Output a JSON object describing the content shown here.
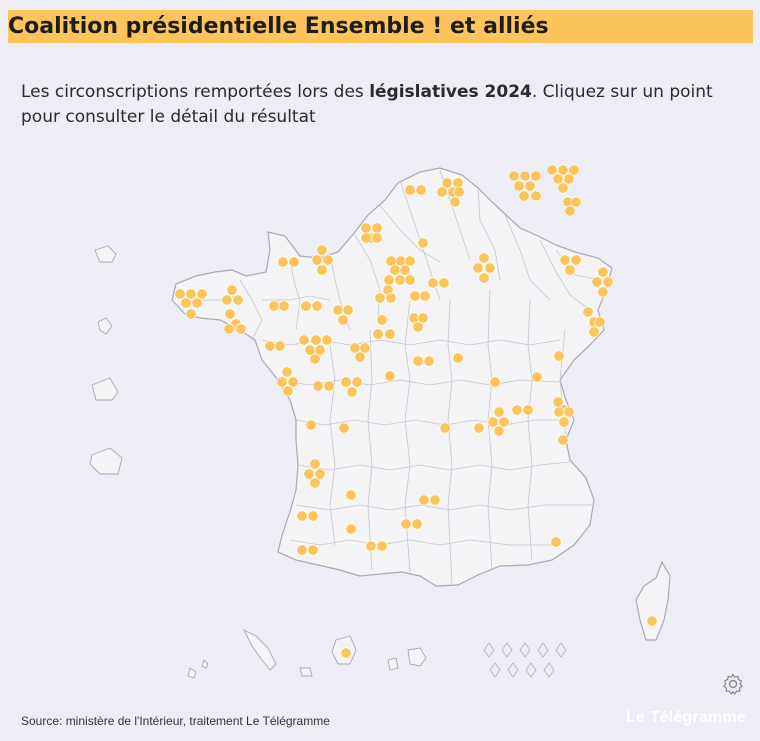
{
  "header": {
    "title": "Coalition présidentielle Ensemble ! et alliés",
    "subtitle_before": "Les circonscriptions remportées lors des ",
    "subtitle_bold": "législatives 2024",
    "subtitle_after": ". Cliquez sur un point pour consulter le détail du résultat"
  },
  "footer": {
    "source": "Source: ministère de l'Intérieur, traitement Le Télégramme",
    "brand": "Le Télégramme"
  },
  "map": {
    "point_color": "#fcc55c",
    "land_color": "#f4f4f6",
    "border_color": "#a9a9b2"
  },
  "icons": {
    "settings": "gear-icon"
  }
}
